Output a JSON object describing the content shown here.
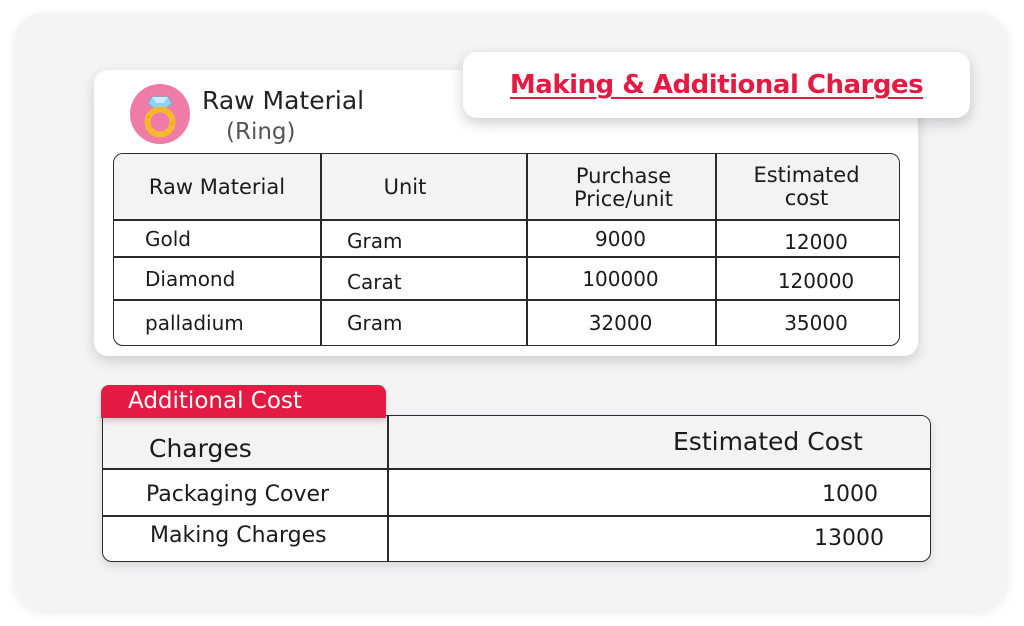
{
  "raw_section": {
    "title": "Raw Material",
    "subtitle": "(Ring)",
    "icon": "ring-icon",
    "banner": "Making & Additional Charges"
  },
  "raw_table": {
    "headers": [
      "Raw Material",
      "Unit",
      "Purchase Price/unit",
      "Estimated cost"
    ],
    "rows": [
      {
        "material": "Gold",
        "unit": "Gram",
        "price": "9000",
        "estimated": "12000"
      },
      {
        "material": "Diamond",
        "unit": "Carat",
        "price": "100000",
        "estimated": "120000"
      },
      {
        "material": "palladium",
        "unit": "Gram",
        "price": "32000",
        "estimated": "35000"
      }
    ]
  },
  "additional": {
    "tab_label": "Additional Cost",
    "headers": [
      "Charges",
      "Estimated Cost"
    ],
    "rows": [
      {
        "charge": "Packaging Cover",
        "cost": "1000"
      },
      {
        "charge": "Making Charges",
        "cost": "13000"
      }
    ]
  },
  "colors": {
    "accent": "#e31b43",
    "icon_bg": "#f07ba7",
    "ring_gold": "#f5b82e"
  }
}
